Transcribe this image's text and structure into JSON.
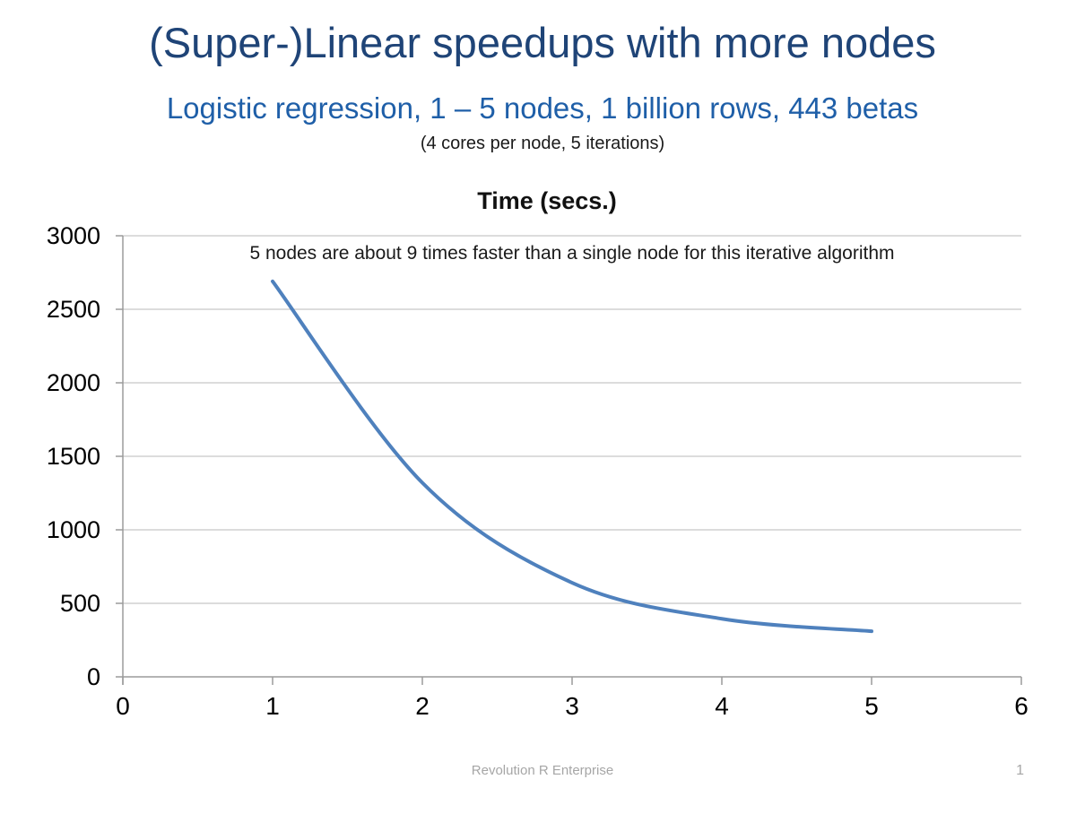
{
  "slide": {
    "title": "(Super-)Linear speedups with more nodes",
    "subtitle": "Logistic regression, 1 – 5 nodes, 1 billion rows, 443 betas",
    "note": "(4 cores per node, 5 iterations)"
  },
  "footer": {
    "text": "Revolution R Enterprise",
    "page_number": "1"
  },
  "colors": {
    "title": "#1F4477",
    "subtitle": "#1F5FA8",
    "line": "#4F81BD",
    "gridline": "#C6C6C6",
    "axis": "#9B9B9B",
    "tick_label": "#000000",
    "footer": "#A6A6A6"
  },
  "chart_data": {
    "type": "line",
    "title": "Time (secs.)",
    "annotation": "5 nodes are about 9 times faster than a single node for this iterative algorithm",
    "x": [
      1,
      2,
      3,
      4,
      5
    ],
    "series": [
      {
        "name": "Time (secs.)",
        "values": [
          2690,
          1320,
          640,
          395,
          310
        ]
      }
    ],
    "xlabel": "",
    "ylabel": "",
    "xlim": [
      0,
      6
    ],
    "ylim": [
      0,
      3000
    ],
    "x_ticks": [
      0,
      1,
      2,
      3,
      4,
      5,
      6
    ],
    "y_ticks": [
      0,
      500,
      1000,
      1500,
      2000,
      2500,
      3000
    ],
    "grid": true,
    "legend_position": "none",
    "smoothed": true
  }
}
